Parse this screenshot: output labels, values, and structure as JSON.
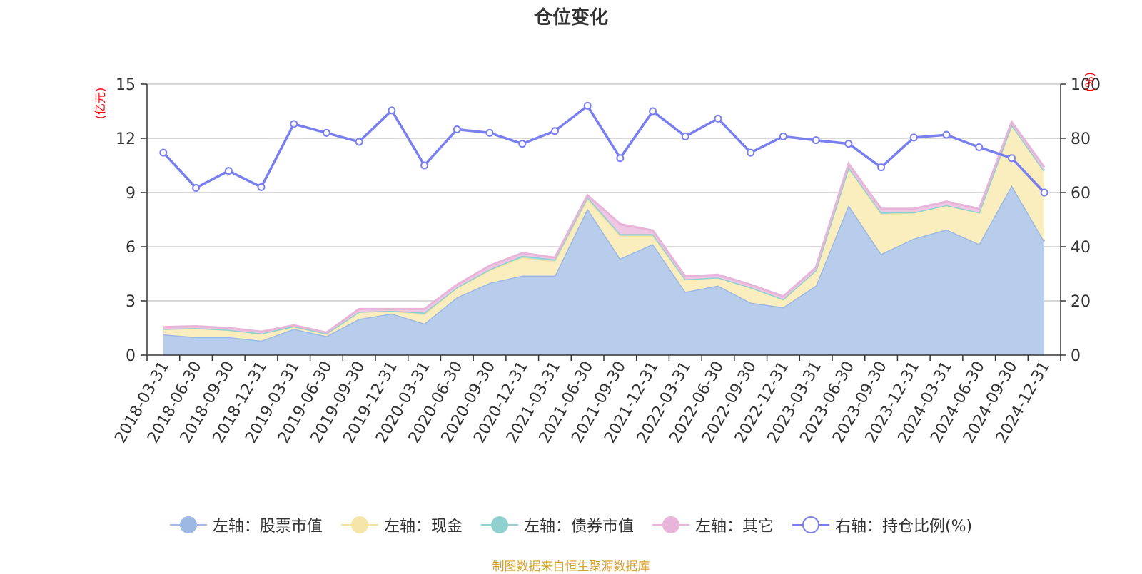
{
  "chart_data": {
    "type": "area",
    "title": "仓位变化",
    "left_axis_label": "(亿元)",
    "right_axis_label": "(%)",
    "left_ylim": [
      0,
      15
    ],
    "left_ticks": [
      0,
      3,
      6,
      9,
      12,
      15
    ],
    "right_ylim": [
      0,
      100
    ],
    "right_ticks": [
      0,
      20,
      40,
      60,
      80,
      100
    ],
    "categories": [
      "2018-03-31",
      "2018-06-30",
      "2018-09-30",
      "2018-12-31",
      "2019-03-31",
      "2019-06-30",
      "2019-09-30",
      "2019-12-31",
      "2020-03-31",
      "2020-06-30",
      "2020-09-30",
      "2020-12-31",
      "2021-03-31",
      "2021-06-30",
      "2021-09-30",
      "2021-12-31",
      "2022-03-31",
      "2022-06-30",
      "2022-09-30",
      "2022-12-31",
      "2023-03-31",
      "2023-06-30",
      "2023-09-30",
      "2023-12-31",
      "2024-03-31",
      "2024-06-30",
      "2024-09-30",
      "2024-12-31"
    ],
    "stacked_series": [
      {
        "name": "左轴：股票市值",
        "color": "#9db8e2",
        "fill": "#b7cdeb",
        "values": [
          1.15,
          1.0,
          1.0,
          0.8,
          1.45,
          1.05,
          2.0,
          2.3,
          1.75,
          3.2,
          4.0,
          4.4,
          4.4,
          8.1,
          5.35,
          6.15,
          3.5,
          3.85,
          2.9,
          2.65,
          3.85,
          8.3,
          5.6,
          6.45,
          6.95,
          6.15,
          9.4,
          6.3
        ]
      },
      {
        "name": "左轴：现金",
        "color": "#f4e4a6",
        "fill": "#faedbe",
        "values": [
          0.3,
          0.5,
          0.4,
          0.4,
          0.15,
          0.15,
          0.4,
          0.15,
          0.5,
          0.55,
          0.7,
          1.0,
          0.8,
          0.55,
          1.25,
          0.45,
          0.7,
          0.45,
          0.85,
          0.45,
          0.85,
          2.1,
          2.2,
          1.45,
          1.35,
          1.75,
          3.35,
          3.9
        ]
      },
      {
        "name": "左轴：债券市值",
        "color": "#8fd1cf",
        "fill": "#a9dcd9",
        "values": [
          0.0,
          0.0,
          0.0,
          0.0,
          0.0,
          0.0,
          0.0,
          0.0,
          0.1,
          0.0,
          0.05,
          0.1,
          0.1,
          0.1,
          0.1,
          0.1,
          0.0,
          0.0,
          0.0,
          0.0,
          0.0,
          0.0,
          0.1,
          0.0,
          0.0,
          0.0,
          0.0,
          0.0
        ]
      },
      {
        "name": "左轴：其它",
        "color": "#e8b4d9",
        "fill": "#efc6e3",
        "values": [
          0.1,
          0.1,
          0.1,
          0.1,
          0.05,
          0.05,
          0.15,
          0.1,
          0.2,
          0.15,
          0.2,
          0.15,
          0.1,
          0.1,
          0.55,
          0.2,
          0.15,
          0.15,
          0.15,
          0.15,
          0.15,
          0.2,
          0.2,
          0.2,
          0.2,
          0.2,
          0.15,
          0.2
        ]
      }
    ],
    "line_series": {
      "name": "右轴：持仓比例(%)",
      "color": "#7a7ff0",
      "values": [
        74.7,
        61.7,
        68.0,
        62.0,
        85.3,
        82.0,
        78.7,
        90.3,
        70.0,
        83.3,
        82.0,
        78.0,
        82.7,
        92.0,
        72.7,
        90.0,
        80.7,
        87.3,
        74.7,
        80.7,
        79.3,
        78.0,
        69.3,
        80.3,
        81.3,
        76.7,
        72.7,
        60.0
      ]
    },
    "legend": [
      {
        "label": "左轴：股票市值",
        "line_color": "#9db8e2",
        "dot_color": "#9db8e2",
        "hollow": false
      },
      {
        "label": "左轴：现金",
        "line_color": "#f4e4a6",
        "dot_color": "#f6e5a8",
        "hollow": false
      },
      {
        "label": "左轴：债券市值",
        "line_color": "#8fd1cf",
        "dot_color": "#8fd1cf",
        "hollow": false
      },
      {
        "label": "左轴：其它",
        "line_color": "#e8b4d9",
        "dot_color": "#e8b4d9",
        "hollow": false
      },
      {
        "label": "右轴：持仓比例(%)",
        "line_color": "#7a7ff0",
        "dot_color": "#7a7ff0",
        "hollow": true
      }
    ],
    "source": "制图数据来自恒生聚源数据库"
  }
}
